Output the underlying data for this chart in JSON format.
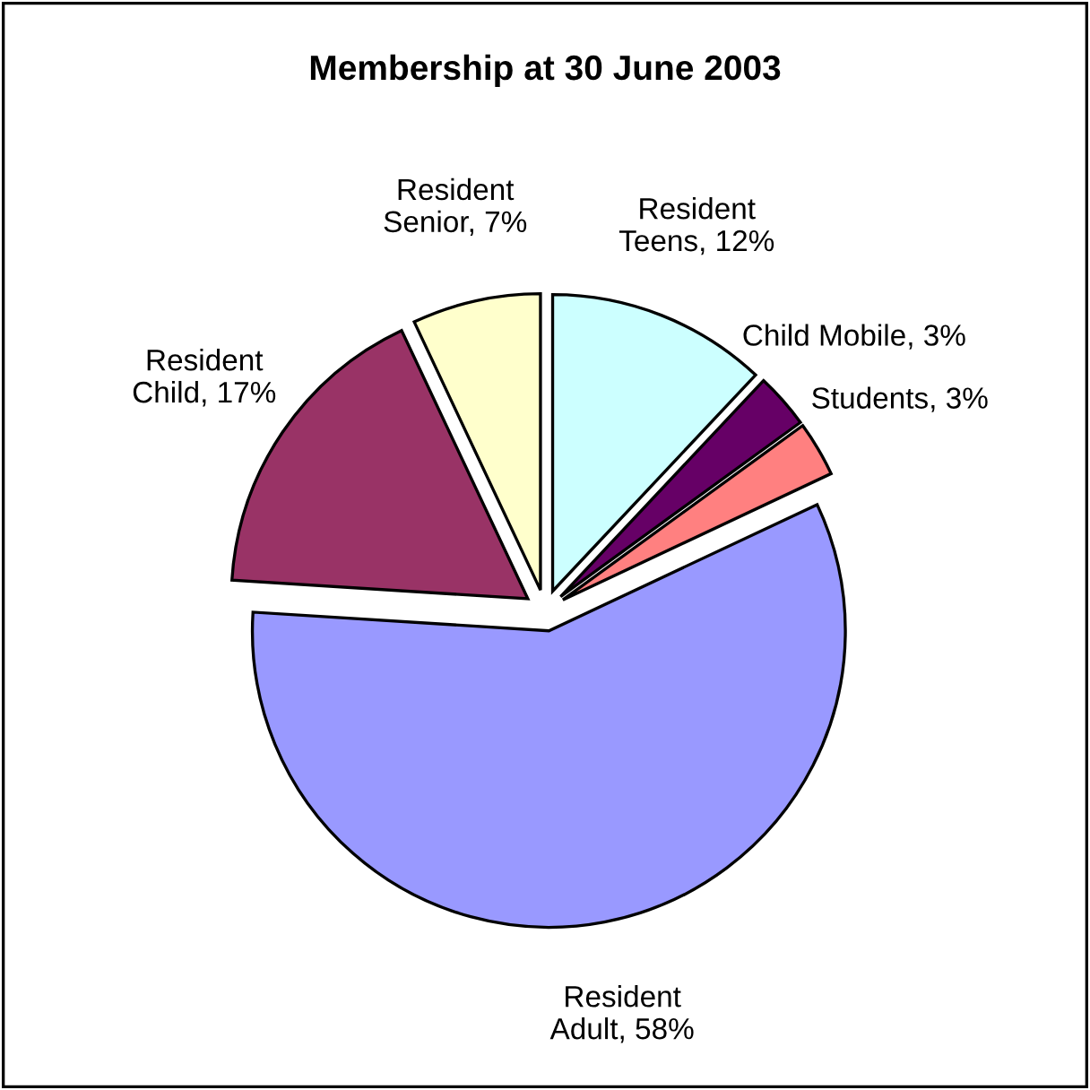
{
  "chart_data": {
    "type": "pie",
    "title": "Membership at 30 June 2003",
    "categories": [
      "Resident\nTeens",
      "Child Mobile",
      "Students",
      "Resident\nAdult",
      "Resident\nChild",
      "Resident\nSenior"
    ],
    "values": [
      12,
      3,
      3,
      58,
      17,
      7
    ],
    "colors": [
      "#ccffff",
      "#660066",
      "#ff8080",
      "#9999ff",
      "#993366",
      "#ffffcc"
    ],
    "value_labels": [
      "12%",
      "3%",
      "3%",
      "58%",
      "17%",
      "7%"
    ],
    "legend": false
  }
}
